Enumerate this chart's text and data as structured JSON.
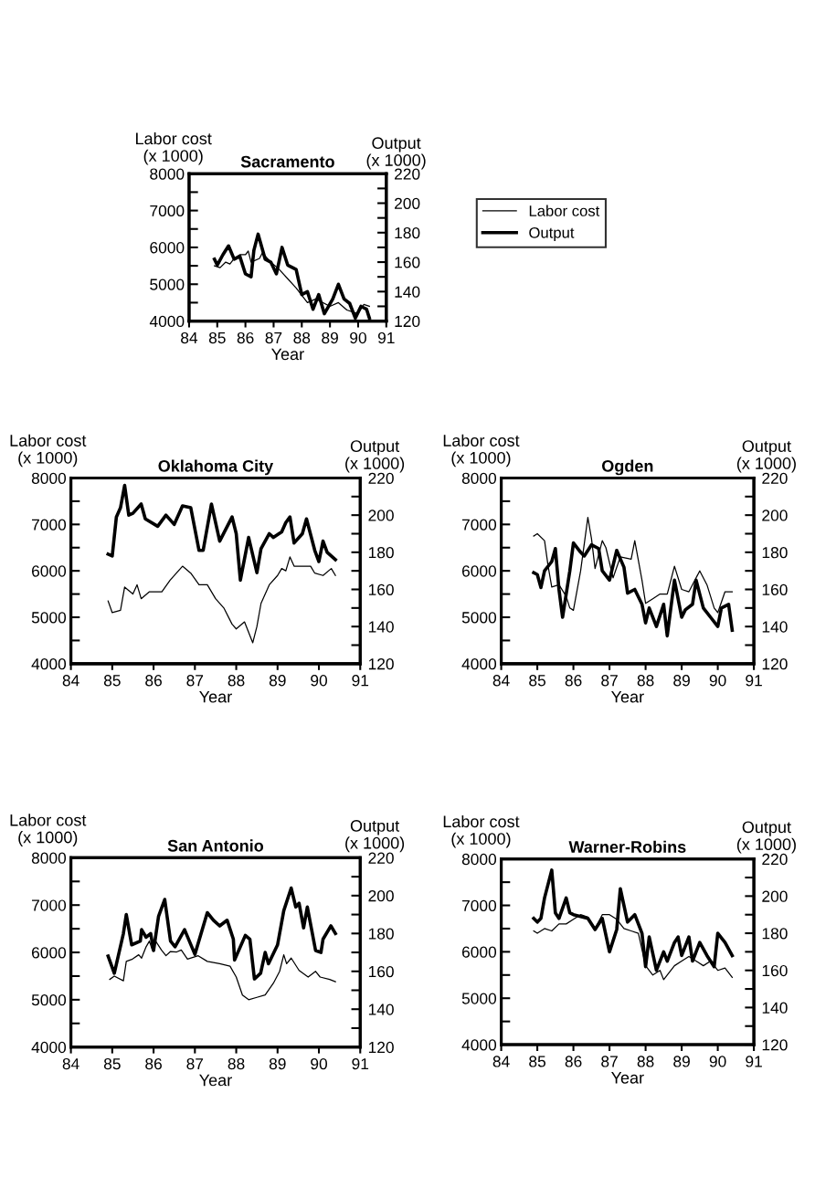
{
  "chart_data": [
    {
      "type": "line",
      "title": "Sacramento",
      "xlabel": "Year",
      "ylabel": "Labor cost\n(x 1000)",
      "y2label": "Output\n(x 1000)",
      "legend": "right",
      "xlim": [
        84,
        91
      ],
      "xticks": [
        84,
        85,
        86,
        87,
        88,
        89,
        90,
        91
      ],
      "ylim": [
        4000,
        8000
      ],
      "yticks": [
        4000,
        {
          "value": 4500,
          "label": null
        },
        5000,
        {
          "value": 5500,
          "label": null
        },
        6000,
        {
          "value": 6500,
          "label": null
        },
        7000,
        {
          "value": 7500,
          "label": null
        },
        8000
      ],
      "y2lim": [
        120,
        220
      ],
      "y2ticks": [
        120,
        {
          "value": 130,
          "label": null
        },
        140,
        {
          "value": 150,
          "label": null
        },
        160,
        {
          "value": 170,
          "label": null
        },
        180,
        {
          "value": 190,
          "label": null
        },
        200,
        {
          "value": 210,
          "label": null
        },
        220
      ],
      "series": [
        {
          "name": "Labor cost",
          "color": "#000000",
          "x": [
            84.9,
            85.1,
            85.3,
            85.45,
            85.6,
            85.8,
            86.0,
            86.1,
            86.2,
            86.5,
            86.6,
            86.9,
            87.2,
            87.5,
            87.8,
            88.2,
            88.5,
            89.0,
            89.3,
            89.6,
            90.0,
            90.2,
            90.4
          ],
          "values": [
            5500,
            5450,
            5600,
            5550,
            5700,
            5800,
            5800,
            5900,
            5600,
            5700,
            5850,
            5600,
            5400,
            5150,
            4900,
            4500,
            4600,
            4400,
            4500,
            4300,
            4200,
            4450,
            4400
          ]
        },
        {
          "name": "Output",
          "color": "#000000",
          "axis": "y2",
          "x": [
            84.9,
            85.0,
            85.2,
            85.4,
            85.6,
            85.8,
            86.0,
            86.2,
            86.3,
            86.45,
            86.7,
            86.9,
            87.1,
            87.3,
            87.5,
            87.8,
            88.0,
            88.2,
            88.4,
            88.6,
            88.8,
            89.1,
            89.3,
            89.5,
            89.7,
            89.9,
            90.1,
            90.3,
            90.4
          ],
          "values": [
            162,
            158,
            165,
            171,
            162,
            164,
            152,
            150,
            168,
            179,
            162,
            160,
            152,
            170,
            158,
            155,
            138,
            140,
            128,
            138,
            125,
            135,
            145,
            135,
            132,
            122,
            130,
            128,
            122
          ]
        }
      ]
    },
    {
      "type": "line",
      "title": "Oklahoma City",
      "xlabel": "Year",
      "ylabel": "Labor cost\n(x 1000)",
      "y2label": "Output\n(x 1000)",
      "xlim": [
        84,
        91
      ],
      "xticks": [
        84,
        85,
        86,
        87,
        88,
        89,
        90,
        91
      ],
      "ylim": [
        4000,
        8000
      ],
      "yticks": [
        4000,
        {
          "value": 4500,
          "label": null
        },
        5000,
        {
          "value": 5500,
          "label": null
        },
        6000,
        {
          "value": 6500,
          "label": null
        },
        7000,
        {
          "value": 7500,
          "label": null
        },
        8000
      ],
      "y2lim": [
        120,
        220
      ],
      "y2ticks": [
        120,
        {
          "value": 130,
          "label": null
        },
        140,
        {
          "value": 150,
          "label": null
        },
        160,
        {
          "value": 170,
          "label": null
        },
        180,
        {
          "value": 190,
          "label": null
        },
        200,
        {
          "value": 210,
          "label": null
        },
        220
      ],
      "series": [
        {
          "color": "#000000",
          "x": [
            84.9,
            85.0,
            85.2,
            85.3,
            85.5,
            85.6,
            85.7,
            85.9,
            86.2,
            86.4,
            86.7,
            86.9,
            87.1,
            87.3,
            87.5,
            87.7,
            87.9,
            88.0,
            88.2,
            88.4,
            88.5,
            88.6,
            88.8,
            89.0,
            89.1,
            89.2,
            89.3,
            89.4,
            89.8,
            89.9,
            90.1,
            90.3,
            90.4
          ],
          "values": [
            5350,
            5100,
            5150,
            5650,
            5500,
            5700,
            5400,
            5550,
            5550,
            5800,
            6100,
            5950,
            5700,
            5700,
            5400,
            5200,
            4850,
            4750,
            4900,
            4450,
            4800,
            5300,
            5700,
            5900,
            6050,
            6000,
            6300,
            6100,
            6100,
            5950,
            5900,
            6050,
            5900
          ]
        },
        {
          "color": "#000000",
          "axis": "y2",
          "x": [
            84.9,
            85.0,
            85.1,
            85.2,
            85.3,
            85.4,
            85.5,
            85.7,
            85.8,
            86.1,
            86.3,
            86.5,
            86.7,
            86.9,
            87.1,
            87.2,
            87.4,
            87.6,
            87.9,
            88.0,
            88.1,
            88.3,
            88.5,
            88.6,
            88.8,
            88.9,
            89.1,
            89.2,
            89.3,
            89.4,
            89.6,
            89.7,
            89.9,
            90.0,
            90.1,
            90.2,
            90.4
          ],
          "values": [
            179,
            178,
            199,
            204,
            216,
            200,
            201,
            206,
            198,
            194,
            200,
            195,
            205,
            204,
            181,
            181,
            206,
            186,
            199,
            190,
            165,
            188,
            169,
            182,
            190,
            188,
            191,
            196,
            199,
            185,
            190,
            198,
            181,
            175,
            186,
            180,
            176
          ]
        }
      ]
    },
    {
      "type": "line",
      "title": "Ogden",
      "xlabel": "Year",
      "ylabel": "Labor cost\n(x 1000)",
      "y2label": "Output\n(x 1000)",
      "xlim": [
        84,
        91
      ],
      "xticks": [
        84,
        85,
        86,
        87,
        88,
        89,
        90,
        91
      ],
      "ylim": [
        4000,
        8000
      ],
      "yticks": [
        4000,
        {
          "value": 4500,
          "label": null
        },
        5000,
        {
          "value": 5500,
          "label": null
        },
        6000,
        {
          "value": 6500,
          "label": null
        },
        7000,
        {
          "value": 7500,
          "label": null
        },
        8000
      ],
      "y2lim": [
        120,
        220
      ],
      "y2ticks": [
        120,
        {
          "value": 130,
          "label": null
        },
        140,
        {
          "value": 150,
          "label": null
        },
        160,
        {
          "value": 170,
          "label": null
        },
        180,
        {
          "value": 190,
          "label": null
        },
        200,
        {
          "value": 210,
          "label": null
        },
        220
      ],
      "series": [
        {
          "color": "#000000",
          "x": [
            84.9,
            85.0,
            85.2,
            85.3,
            85.4,
            85.6,
            85.8,
            85.9,
            86.0,
            86.2,
            86.4,
            86.5,
            86.6,
            86.8,
            86.9,
            87.1,
            87.3,
            87.6,
            87.7,
            87.9,
            88.0,
            88.2,
            88.4,
            88.6,
            88.8,
            89.0,
            89.2,
            89.5,
            89.7,
            89.9,
            90.0,
            90.2,
            90.4
          ],
          "values": [
            6750,
            6800,
            6650,
            6100,
            5650,
            5700,
            5450,
            5200,
            5150,
            6000,
            7150,
            6700,
            6050,
            6650,
            6500,
            5850,
            6300,
            6250,
            6650,
            5800,
            5300,
            5400,
            5500,
            5500,
            6100,
            5600,
            5550,
            6000,
            5700,
            5200,
            5100,
            5550,
            5550
          ]
        },
        {
          "color": "#000000",
          "axis": "y2",
          "x": [
            84.9,
            85.0,
            85.1,
            85.2,
            85.4,
            85.5,
            85.6,
            85.7,
            85.9,
            86.0,
            86.2,
            86.3,
            86.5,
            86.7,
            86.8,
            87.0,
            87.2,
            87.4,
            87.5,
            87.7,
            87.9,
            88.0,
            88.1,
            88.3,
            88.5,
            88.6,
            88.8,
            89.0,
            89.1,
            89.3,
            89.4,
            89.6,
            89.8,
            90.0,
            90.1,
            90.3,
            90.4
          ],
          "values": [
            169,
            168,
            161,
            170,
            175,
            182,
            160,
            145,
            170,
            185,
            180,
            178,
            184,
            182,
            170,
            165,
            181,
            172,
            158,
            160,
            152,
            142,
            150,
            140,
            152,
            135,
            165,
            145,
            149,
            152,
            165,
            150,
            145,
            140,
            150,
            152,
            138
          ]
        }
      ]
    },
    {
      "type": "line",
      "title": "San Antonio",
      "xlabel": "Year",
      "ylabel": "Labor cost\n(x 1000)",
      "y2label": "Output\n(x 1000)",
      "xlim": [
        84,
        91
      ],
      "xticks": [
        84,
        85,
        86,
        87,
        88,
        89,
        90,
        91
      ],
      "ylim": [
        4000,
        8000
      ],
      "yticks": [
        4000,
        {
          "value": 4500,
          "label": null
        },
        5000,
        {
          "value": 5500,
          "label": null
        },
        6000,
        {
          "value": 6500,
          "label": null
        },
        7000,
        {
          "value": 7500,
          "label": null
        },
        8000
      ],
      "y2lim": [
        120,
        220
      ],
      "y2ticks": [
        120,
        {
          "value": 130,
          "label": null
        },
        140,
        {
          "value": 150,
          "label": null
        },
        160,
        {
          "value": 170,
          "label": null
        },
        180,
        {
          "value": 190,
          "label": null
        },
        200,
        {
          "value": 210,
          "label": null
        },
        220
      ],
      "series": [
        {
          "color": "#000000",
          "x": [
            84.94,
            85.05,
            85.27,
            85.34,
            85.49,
            85.64,
            85.71,
            85.82,
            85.9,
            85.97,
            86.05,
            86.19,
            86.3,
            86.41,
            86.56,
            86.67,
            86.82,
            87.08,
            87.3,
            87.6,
            87.85,
            88.0,
            88.15,
            88.3,
            88.5,
            88.7,
            88.9,
            89.05,
            89.15,
            89.22,
            89.33,
            89.52,
            89.74,
            89.92,
            90.03,
            90.26,
            90.4
          ],
          "values": [
            5430,
            5500,
            5400,
            5810,
            5860,
            5950,
            5880,
            6120,
            6240,
            6050,
            6240,
            6050,
            5930,
            6020,
            6010,
            6050,
            5860,
            5930,
            5810,
            5760,
            5710,
            5480,
            5100,
            5000,
            5050,
            5100,
            5350,
            5600,
            5950,
            5760,
            5880,
            5620,
            5480,
            5600,
            5480,
            5430,
            5380
          ]
        },
        {
          "color": "#000000",
          "axis": "y2",
          "x": [
            84.9,
            85.05,
            85.27,
            85.34,
            85.47,
            85.68,
            85.71,
            85.82,
            85.93,
            86.0,
            86.12,
            86.27,
            86.41,
            86.52,
            86.75,
            87.0,
            87.3,
            87.45,
            87.6,
            87.78,
            87.93,
            87.96,
            88.22,
            88.33,
            88.44,
            88.59,
            88.7,
            88.78,
            89.0,
            89.15,
            89.33,
            89.44,
            89.52,
            89.63,
            89.72,
            89.92,
            90.05,
            90.1,
            90.29,
            90.4
          ],
          "values": [
            168,
            159,
            180,
            190,
            174,
            176,
            182,
            178,
            180,
            171,
            189,
            198,
            176,
            173,
            182,
            169,
            191,
            187,
            184,
            187,
            177,
            166,
            179,
            177,
            156,
            159,
            170,
            164,
            174,
            192,
            204,
            194,
            196,
            183,
            194,
            171,
            170,
            177,
            184,
            180
          ]
        }
      ]
    },
    {
      "type": "line",
      "title": "Warner-Robins",
      "xlabel": "Year",
      "ylabel": "Labor cost\n(x 1000)",
      "y2label": "Output\n(x 1000)",
      "xlim": [
        84,
        91
      ],
      "xticks": [
        84,
        85,
        86,
        87,
        88,
        89,
        90,
        91
      ],
      "ylim": [
        4000,
        8000
      ],
      "yticks": [
        4000,
        {
          "value": 4500,
          "label": null
        },
        5000,
        {
          "value": 5500,
          "label": null
        },
        6000,
        {
          "value": 6500,
          "label": null
        },
        7000,
        {
          "value": 7500,
          "label": null
        },
        8000
      ],
      "y2lim": [
        120,
        220
      ],
      "y2ticks": [
        120,
        {
          "value": 130,
          "label": null
        },
        140,
        {
          "value": 150,
          "label": null
        },
        160,
        {
          "value": 170,
          "label": null
        },
        180,
        {
          "value": 190,
          "label": null
        },
        200,
        {
          "value": 210,
          "label": null
        },
        220
      ],
      "series": [
        {
          "color": "#000000",
          "x": [
            84.9,
            85.0,
            85.2,
            85.4,
            85.6,
            85.8,
            86.0,
            86.2,
            86.4,
            86.6,
            86.8,
            87.0,
            87.2,
            87.4,
            87.6,
            87.8,
            88.0,
            88.2,
            88.4,
            88.5,
            88.8,
            89.0,
            89.2,
            89.4,
            89.6,
            89.8,
            90.0,
            90.2,
            90.4
          ],
          "values": [
            6450,
            6400,
            6500,
            6450,
            6600,
            6600,
            6700,
            6800,
            6750,
            6500,
            6800,
            6800,
            6700,
            6500,
            6450,
            6400,
            5700,
            5500,
            5600,
            5400,
            5700,
            5800,
            5900,
            5800,
            5700,
            5800,
            5600,
            5650,
            5450
          ]
        },
        {
          "color": "#000000",
          "axis": "y2",
          "x": [
            84.9,
            85.0,
            85.1,
            85.2,
            85.4,
            85.5,
            85.6,
            85.8,
            85.9,
            86.0,
            86.2,
            86.4,
            86.6,
            86.8,
            87.0,
            87.2,
            87.3,
            87.5,
            87.7,
            87.9,
            88.0,
            88.1,
            88.3,
            88.5,
            88.6,
            88.8,
            88.9,
            89.0,
            89.2,
            89.3,
            89.5,
            89.7,
            89.9,
            90.0,
            90.2,
            90.4
          ],
          "values": [
            188,
            186,
            188,
            199,
            214,
            191,
            188,
            199,
            191,
            190,
            189,
            188,
            182,
            188,
            170,
            182,
            204,
            186,
            190,
            180,
            162,
            178,
            160,
            170,
            165,
            175,
            178,
            168,
            178,
            165,
            175,
            168,
            162,
            180,
            175,
            168
          ]
        }
      ]
    }
  ]
}
